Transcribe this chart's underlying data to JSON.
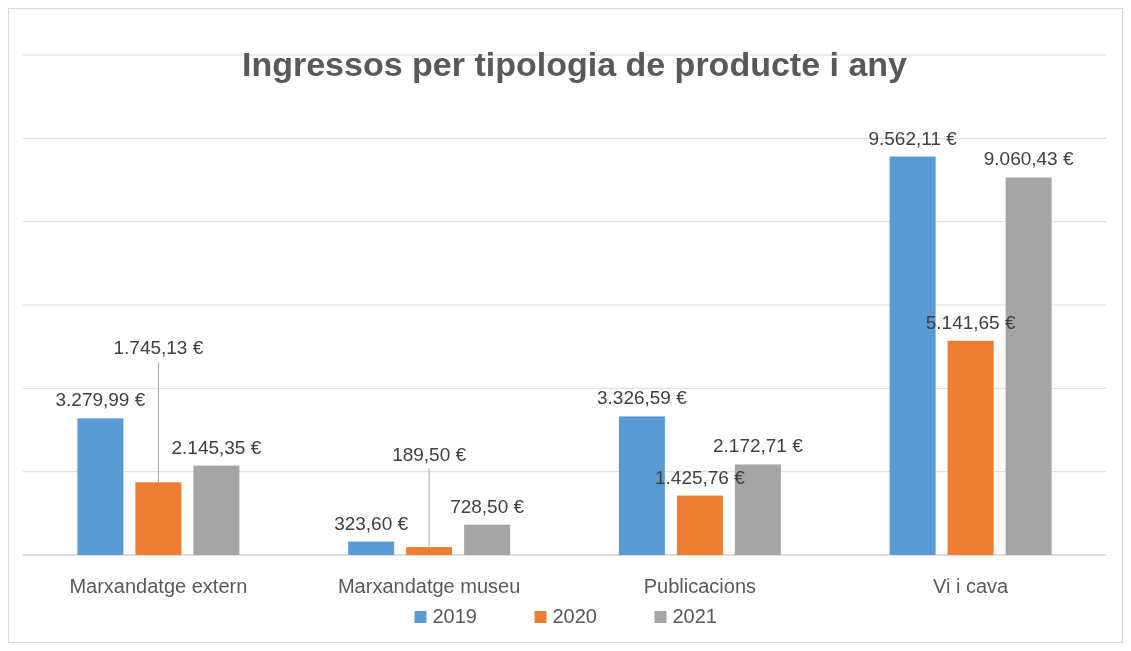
{
  "chart_data": {
    "type": "bar",
    "title": "Ingressos per tipologia de producte i any",
    "categories": [
      "Marxandatge extern",
      "Marxandatge museu",
      "Publicacions",
      "Vi i cava"
    ],
    "series": [
      {
        "name": "2019",
        "color": "#5b9bd5",
        "values": [
          3279.99,
          323.6,
          3326.59,
          9562.11
        ],
        "value_labels": [
          "3.279,99 €",
          "323,60 €",
          "3.326,59 €",
          "9.562,11 €"
        ]
      },
      {
        "name": "2020",
        "color": "#ed7d31",
        "values": [
          1745.13,
          189.5,
          1425.76,
          5141.65
        ],
        "value_labels": [
          "1.745,13 €",
          "189,50 €",
          "1.425,76 €",
          "5.141,65 €"
        ]
      },
      {
        "name": "2021",
        "color": "#a5a5a5",
        "values": [
          2145.35,
          728.5,
          2172.71,
          9060.43
        ],
        "value_labels": [
          "2.145,35 €",
          "728,50 €",
          "2.172,71 €",
          "9.060,43 €"
        ]
      }
    ],
    "ylim": [
      0,
      12000
    ],
    "yticks": [
      {
        "value": 0,
        "label": null
      },
      {
        "value": 2000,
        "label": null
      },
      {
        "value": 4000,
        "label": null
      },
      {
        "value": 6000,
        "label": null
      },
      {
        "value": 8000,
        "label": null
      },
      {
        "value": 10000,
        "label": null
      },
      {
        "value": 12000,
        "label": null
      }
    ],
    "tick_labels": "x",
    "grid": "y",
    "legend": "bottom"
  }
}
